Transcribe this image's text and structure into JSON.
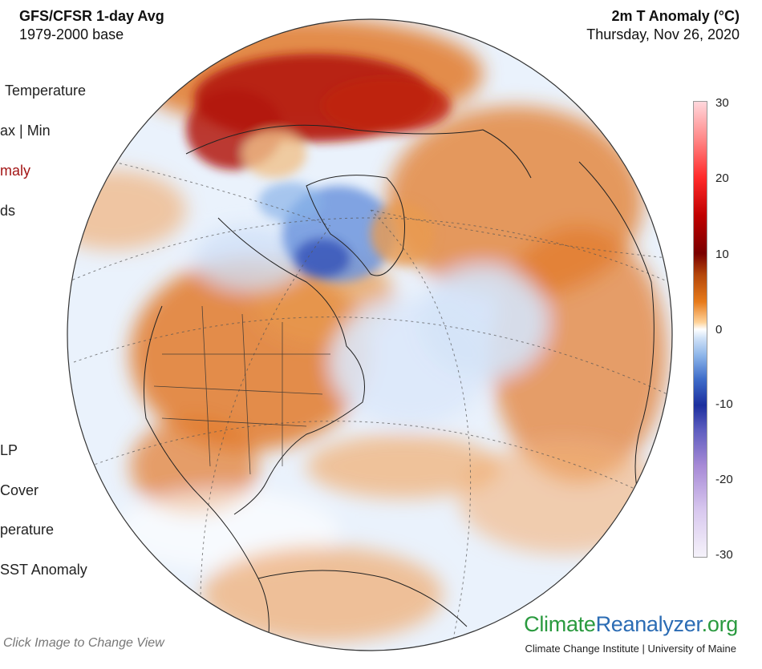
{
  "header": {
    "model": "GFS/CFSR 1-day Avg",
    "base": "1979-2000 base",
    "variable": "2m T Anomaly (°C)",
    "date": "Thursday, Nov 26, 2020"
  },
  "menu": {
    "items": [
      {
        "label": "Temperature"
      },
      {
        "label": "ax  |  Min"
      },
      {
        "label": "maly"
      },
      {
        "label": "ds"
      },
      {
        "label": "LP"
      },
      {
        "label": "Cover"
      },
      {
        "label": "perature"
      },
      {
        "label": "SST Anomaly"
      }
    ]
  },
  "colorbar": {
    "ticks": [
      "30",
      "20",
      "10",
      "0",
      "-10",
      "-20",
      "-30"
    ],
    "colors": {
      "warm_max": "#ffd7dc",
      "warm": "#c00000",
      "neutral": "#ffffff",
      "cool": "#1c2f9e",
      "cool_min": "#f5f2fa"
    }
  },
  "map": {
    "view": "Northern Hemisphere orthographic (North America)",
    "colors": {
      "ocean_base": "#eaf2fc",
      "warm_strong": "#b31a0d",
      "warm": "#e2792a",
      "cool": "#6d95dd",
      "cool_strong": "#2a47b3",
      "border": "#222222"
    }
  },
  "footer": {
    "click_hint": "Click Image to Change View",
    "logo_part1": "Climate",
    "logo_part2": "Reanalyzer",
    "logo_part3": ".org",
    "logo_sub": "Climate Change Institute | University of Maine"
  }
}
